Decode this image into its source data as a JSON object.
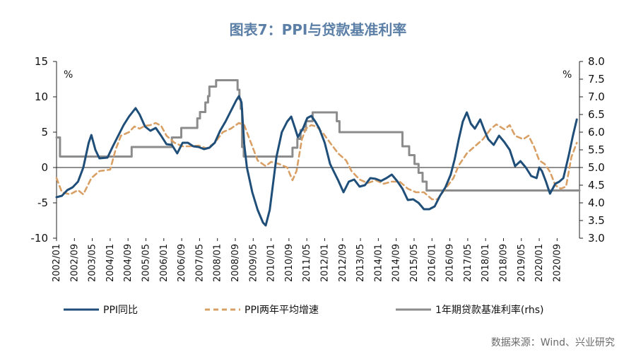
{
  "title": "图表7：PPI与贷款基准利率",
  "source": "数据来源：Wind、兴业研究",
  "chart_data": {
    "type": "line",
    "left_axis": {
      "ylim": [
        -10,
        15
      ],
      "ticks": [
        -10,
        -5,
        0,
        5,
        10,
        15
      ],
      "unit": "%"
    },
    "right_axis": {
      "ylim": [
        3.0,
        8.0
      ],
      "ticks": [
        "3.0",
        "3.5",
        "4.0",
        "4.5",
        "5.0",
        "5.5",
        "6.0",
        "6.5",
        "7.0",
        "7.5",
        "8.0"
      ],
      "unit": "%"
    },
    "x_range": [
      2002.0,
      2021.5
    ],
    "x_ticks": [
      "2002/01",
      "2002/09",
      "2003/05",
      "2004/01",
      "2004/09",
      "2005/05",
      "2006/01",
      "2006/09",
      "2007/05",
      "2008/01",
      "2008/09",
      "2009/05",
      "2010/01",
      "2010/09",
      "2011/05",
      "2012/01",
      "2012/09",
      "2013/05",
      "2014/01",
      "2014/09",
      "2015/05",
      "2016/01",
      "2016/09",
      "2017/05",
      "2018/01",
      "2018/09",
      "2019/05",
      "2020/01",
      "2020/09"
    ],
    "grid": false,
    "legend_position": "bottom",
    "series": [
      {
        "name": "PPI同比",
        "axis": "left",
        "color": "#1f4e79",
        "style": "solid",
        "points": [
          [
            2002.0,
            -4.2
          ],
          [
            2002.2,
            -4.0
          ],
          [
            2002.4,
            -3.2
          ],
          [
            2002.6,
            -2.8
          ],
          [
            2002.8,
            -2.0
          ],
          [
            2003.0,
            0.0
          ],
          [
            2003.2,
            3.5
          ],
          [
            2003.3,
            4.6
          ],
          [
            2003.45,
            2.5
          ],
          [
            2003.6,
            1.3
          ],
          [
            2003.9,
            1.4
          ],
          [
            2004.1,
            3.0
          ],
          [
            2004.3,
            4.5
          ],
          [
            2004.5,
            6.0
          ],
          [
            2004.7,
            7.2
          ],
          [
            2004.95,
            8.4
          ],
          [
            2005.1,
            7.5
          ],
          [
            2005.3,
            5.8
          ],
          [
            2005.5,
            5.2
          ],
          [
            2005.7,
            5.6
          ],
          [
            2005.9,
            4.5
          ],
          [
            2006.1,
            3.3
          ],
          [
            2006.3,
            3.2
          ],
          [
            2006.5,
            2.0
          ],
          [
            2006.7,
            3.5
          ],
          [
            2006.9,
            3.5
          ],
          [
            2007.1,
            3.0
          ],
          [
            2007.3,
            2.9
          ],
          [
            2007.5,
            2.6
          ],
          [
            2007.7,
            2.8
          ],
          [
            2007.9,
            3.5
          ],
          [
            2008.1,
            5.2
          ],
          [
            2008.3,
            6.5
          ],
          [
            2008.5,
            8.0
          ],
          [
            2008.7,
            9.5
          ],
          [
            2008.8,
            10.1
          ],
          [
            2008.9,
            9.2
          ],
          [
            2009.0,
            3.3
          ],
          [
            2009.1,
            0.0
          ],
          [
            2009.3,
            -3.5
          ],
          [
            2009.5,
            -6.0
          ],
          [
            2009.7,
            -7.8
          ],
          [
            2009.8,
            -8.2
          ],
          [
            2009.95,
            -6.0
          ],
          [
            2010.05,
            -3.0
          ],
          [
            2010.2,
            1.5
          ],
          [
            2010.4,
            5.0
          ],
          [
            2010.6,
            6.5
          ],
          [
            2010.75,
            7.2
          ],
          [
            2010.9,
            5.5
          ],
          [
            2011.0,
            4.3
          ],
          [
            2011.2,
            5.6
          ],
          [
            2011.35,
            7.0
          ],
          [
            2011.5,
            7.3
          ],
          [
            2011.65,
            6.5
          ],
          [
            2011.8,
            5.5
          ],
          [
            2012.0,
            3.5
          ],
          [
            2012.2,
            0.5
          ],
          [
            2012.5,
            -1.8
          ],
          [
            2012.7,
            -3.5
          ],
          [
            2012.9,
            -2.0
          ],
          [
            2013.1,
            -1.7
          ],
          [
            2013.3,
            -2.7
          ],
          [
            2013.5,
            -2.5
          ],
          [
            2013.7,
            -1.5
          ],
          [
            2013.9,
            -1.6
          ],
          [
            2014.1,
            -1.9
          ],
          [
            2014.3,
            -1.5
          ],
          [
            2014.5,
            -1.0
          ],
          [
            2014.7,
            -1.9
          ],
          [
            2014.9,
            -3.0
          ],
          [
            2015.1,
            -4.6
          ],
          [
            2015.3,
            -4.5
          ],
          [
            2015.5,
            -5.0
          ],
          [
            2015.7,
            -5.9
          ],
          [
            2015.9,
            -5.9
          ],
          [
            2016.1,
            -5.5
          ],
          [
            2016.3,
            -4.0
          ],
          [
            2016.5,
            -2.8
          ],
          [
            2016.7,
            -1.0
          ],
          [
            2016.85,
            1.2
          ],
          [
            2017.0,
            4.0
          ],
          [
            2017.15,
            6.5
          ],
          [
            2017.3,
            7.8
          ],
          [
            2017.45,
            6.2
          ],
          [
            2017.6,
            5.5
          ],
          [
            2017.8,
            6.8
          ],
          [
            2017.95,
            5.3
          ],
          [
            2018.1,
            4.0
          ],
          [
            2018.3,
            3.2
          ],
          [
            2018.5,
            4.5
          ],
          [
            2018.7,
            3.6
          ],
          [
            2018.9,
            2.5
          ],
          [
            2019.1,
            0.2
          ],
          [
            2019.3,
            0.9
          ],
          [
            2019.5,
            0.0
          ],
          [
            2019.7,
            -1.2
          ],
          [
            2019.9,
            -1.5
          ],
          [
            2020.0,
            0.0
          ],
          [
            2020.1,
            -0.5
          ],
          [
            2020.25,
            -2.0
          ],
          [
            2020.4,
            -3.7
          ],
          [
            2020.6,
            -2.3
          ],
          [
            2020.75,
            -2.0
          ],
          [
            2020.9,
            -1.5
          ],
          [
            2021.1,
            1.7
          ],
          [
            2021.25,
            4.4
          ],
          [
            2021.4,
            6.8
          ]
        ]
      },
      {
        "name": "PPI两年平均增速",
        "axis": "left",
        "color": "#d9a066",
        "style": "dashed",
        "points": [
          [
            2002.0,
            -1.5
          ],
          [
            2002.2,
            -3.5
          ],
          [
            2002.5,
            -3.8
          ],
          [
            2002.8,
            -3.2
          ],
          [
            2003.0,
            -3.8
          ],
          [
            2003.3,
            -1.5
          ],
          [
            2003.6,
            -0.5
          ],
          [
            2004.0,
            -0.3
          ],
          [
            2004.2,
            2.5
          ],
          [
            2004.4,
            4.5
          ],
          [
            2004.7,
            5.0
          ],
          [
            2004.9,
            5.8
          ],
          [
            2005.1,
            5.5
          ],
          [
            2005.3,
            5.9
          ],
          [
            2005.5,
            6.0
          ],
          [
            2005.7,
            6.3
          ],
          [
            2005.9,
            5.9
          ],
          [
            2006.1,
            4.5
          ],
          [
            2006.4,
            3.5
          ],
          [
            2006.7,
            3.0
          ],
          [
            2007.0,
            3.0
          ],
          [
            2007.3,
            3.1
          ],
          [
            2007.6,
            2.7
          ],
          [
            2007.9,
            3.5
          ],
          [
            2008.2,
            5.0
          ],
          [
            2008.5,
            5.5
          ],
          [
            2008.8,
            6.3
          ],
          [
            2009.0,
            6.0
          ],
          [
            2009.2,
            4.0
          ],
          [
            2009.5,
            1.0
          ],
          [
            2009.8,
            0.2
          ],
          [
            2010.0,
            0.8
          ],
          [
            2010.3,
            0.5
          ],
          [
            2010.6,
            0.0
          ],
          [
            2010.8,
            -1.8
          ],
          [
            2010.95,
            -0.5
          ],
          [
            2011.15,
            4.0
          ],
          [
            2011.3,
            5.5
          ],
          [
            2011.5,
            6.0
          ],
          [
            2011.7,
            5.8
          ],
          [
            2011.95,
            4.8
          ],
          [
            2012.2,
            3.5
          ],
          [
            2012.5,
            2.0
          ],
          [
            2012.8,
            1.0
          ],
          [
            2013.0,
            -0.5
          ],
          [
            2013.3,
            -1.7
          ],
          [
            2013.6,
            -2.2
          ],
          [
            2013.9,
            -1.8
          ],
          [
            2014.2,
            -2.3
          ],
          [
            2014.5,
            -2.0
          ],
          [
            2014.8,
            -2.0
          ],
          [
            2015.1,
            -3.0
          ],
          [
            2015.4,
            -3.5
          ],
          [
            2015.7,
            -3.5
          ],
          [
            2016.0,
            -4.5
          ],
          [
            2016.2,
            -4.5
          ],
          [
            2016.5,
            -3.0
          ],
          [
            2016.8,
            -1.5
          ],
          [
            2017.0,
            0.3
          ],
          [
            2017.3,
            2.0
          ],
          [
            2017.6,
            3.0
          ],
          [
            2017.9,
            4.0
          ],
          [
            2018.2,
            5.5
          ],
          [
            2018.4,
            6.1
          ],
          [
            2018.7,
            5.4
          ],
          [
            2018.9,
            6.0
          ],
          [
            2019.1,
            4.5
          ],
          [
            2019.4,
            4.0
          ],
          [
            2019.6,
            4.5
          ],
          [
            2019.8,
            3.0
          ],
          [
            2020.0,
            1.0
          ],
          [
            2020.2,
            0.5
          ],
          [
            2020.4,
            -0.6
          ],
          [
            2020.6,
            -2.5
          ],
          [
            2020.8,
            -3.0
          ],
          [
            2021.0,
            -2.7
          ],
          [
            2021.2,
            1.5
          ],
          [
            2021.4,
            3.5
          ]
        ]
      },
      {
        "name": "1年期贷款基准利率(rhs)",
        "axis": "right",
        "color": "#8c8c8c",
        "style": "solid",
        "points": [
          [
            2002.0,
            5.85
          ],
          [
            2002.13,
            5.85
          ],
          [
            2002.13,
            5.31
          ],
          [
            2004.8,
            5.31
          ],
          [
            2004.8,
            5.58
          ],
          [
            2006.3,
            5.58
          ],
          [
            2006.3,
            5.85
          ],
          [
            2006.65,
            5.85
          ],
          [
            2006.65,
            6.12
          ],
          [
            2007.25,
            6.12
          ],
          [
            2007.25,
            6.39
          ],
          [
            2007.35,
            6.39
          ],
          [
            2007.35,
            6.57
          ],
          [
            2007.55,
            6.57
          ],
          [
            2007.55,
            6.84
          ],
          [
            2007.65,
            6.84
          ],
          [
            2007.65,
            7.02
          ],
          [
            2007.7,
            7.02
          ],
          [
            2007.7,
            7.29
          ],
          [
            2007.95,
            7.29
          ],
          [
            2007.95,
            7.47
          ],
          [
            2008.75,
            7.47
          ],
          [
            2008.75,
            7.2
          ],
          [
            2008.82,
            7.2
          ],
          [
            2008.82,
            6.93
          ],
          [
            2008.87,
            6.93
          ],
          [
            2008.87,
            6.66
          ],
          [
            2008.92,
            6.66
          ],
          [
            2008.92,
            5.58
          ],
          [
            2008.98,
            5.58
          ],
          [
            2008.98,
            5.31
          ],
          [
            2010.8,
            5.31
          ],
          [
            2010.8,
            5.56
          ],
          [
            2010.98,
            5.56
          ],
          [
            2010.98,
            5.81
          ],
          [
            2011.1,
            5.81
          ],
          [
            2011.1,
            6.06
          ],
          [
            2011.3,
            6.06
          ],
          [
            2011.3,
            6.31
          ],
          [
            2011.55,
            6.31
          ],
          [
            2011.55,
            6.56
          ],
          [
            2012.45,
            6.56
          ],
          [
            2012.45,
            6.31
          ],
          [
            2012.55,
            6.31
          ],
          [
            2012.55,
            6.0
          ],
          [
            2014.9,
            6.0
          ],
          [
            2014.9,
            5.6
          ],
          [
            2015.15,
            5.6
          ],
          [
            2015.15,
            5.35
          ],
          [
            2015.35,
            5.35
          ],
          [
            2015.35,
            5.1
          ],
          [
            2015.5,
            5.1
          ],
          [
            2015.5,
            4.85
          ],
          [
            2015.65,
            4.85
          ],
          [
            2015.65,
            4.6
          ],
          [
            2015.8,
            4.6
          ],
          [
            2015.8,
            4.35
          ],
          [
            2021.5,
            4.35
          ]
        ]
      }
    ]
  }
}
